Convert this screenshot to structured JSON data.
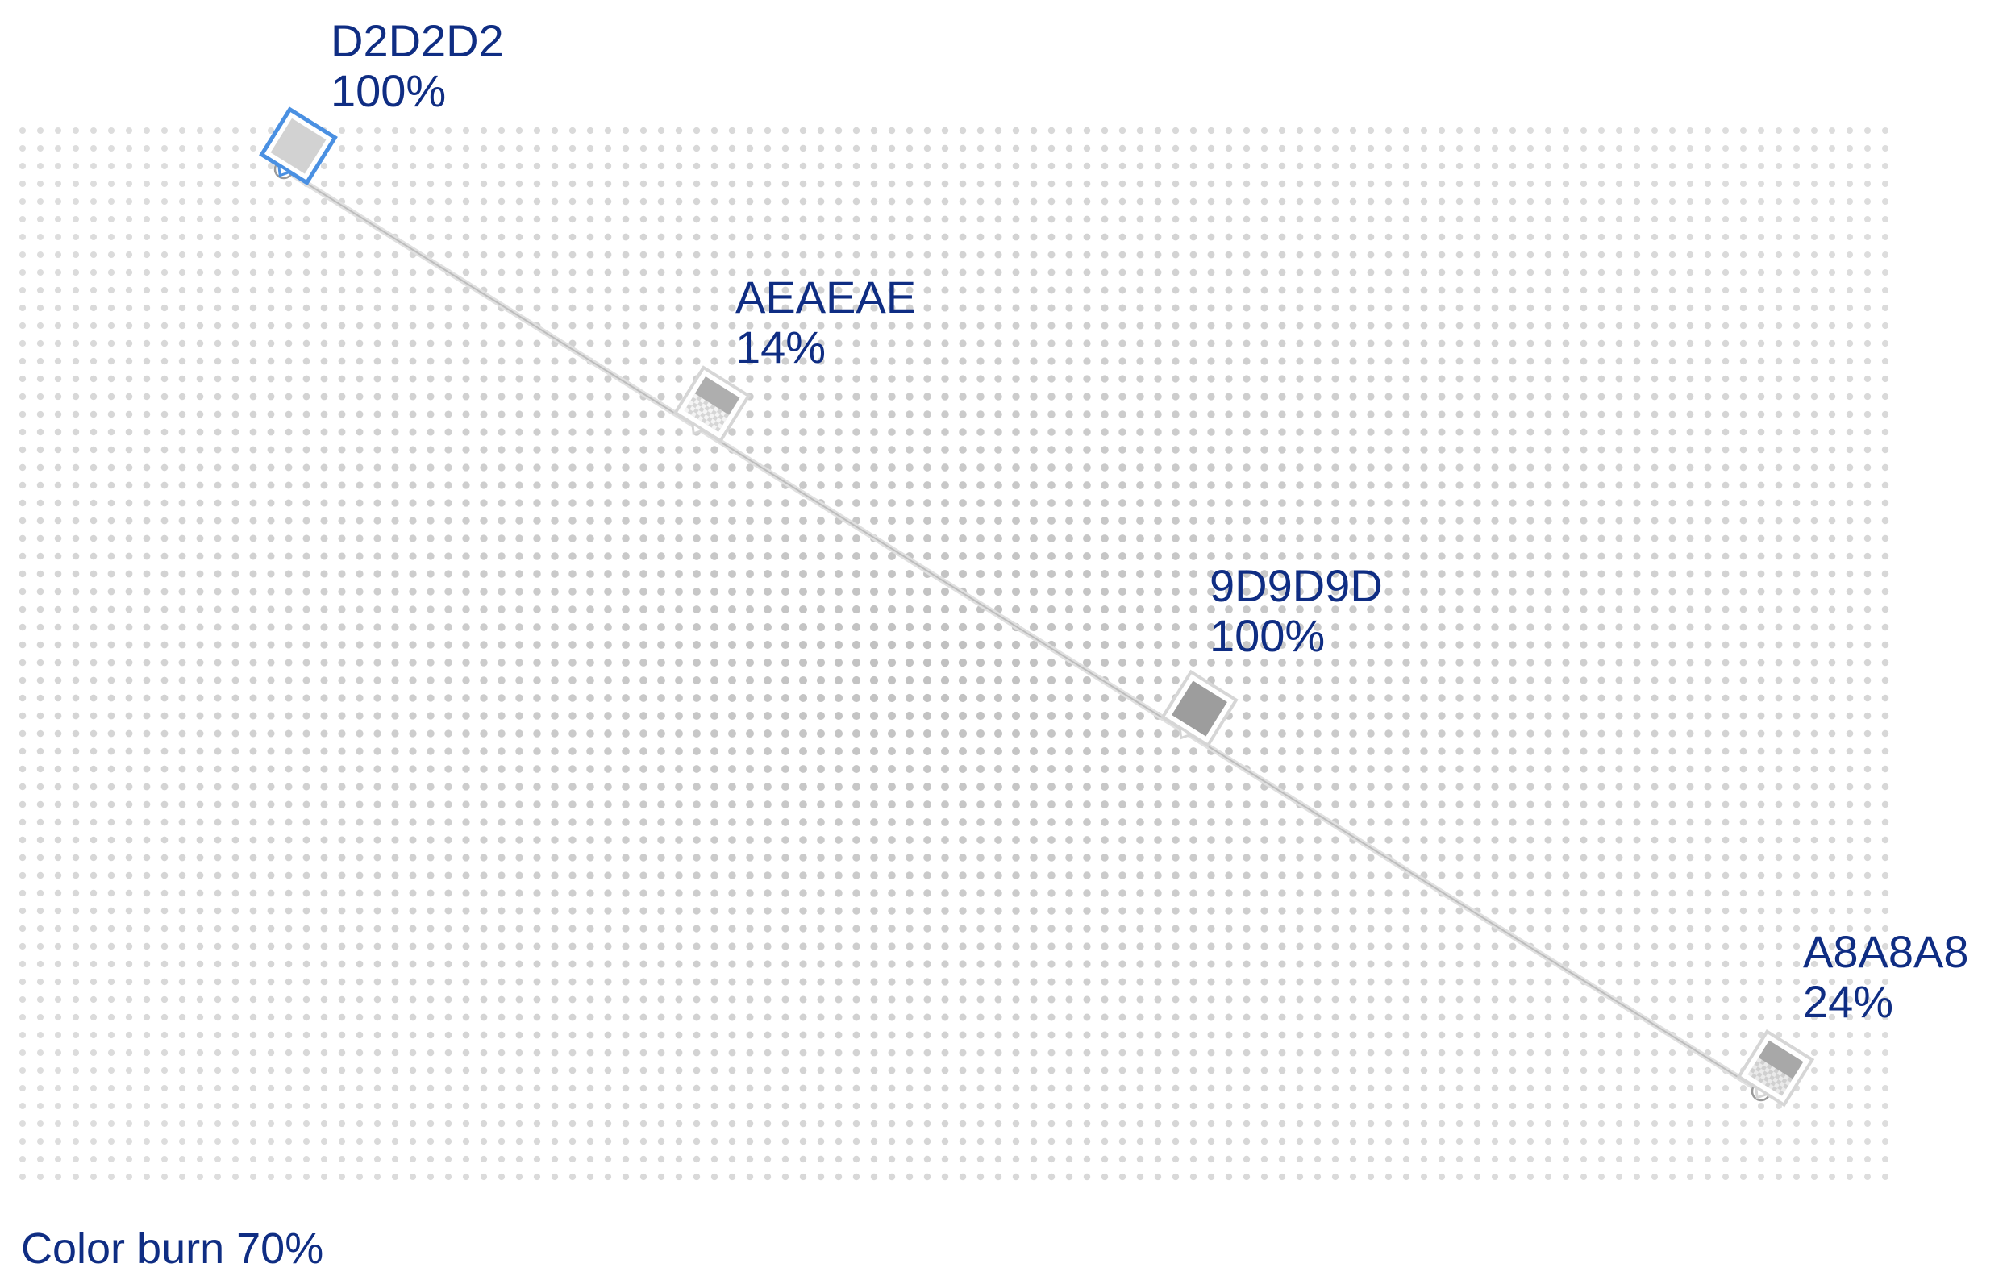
{
  "gradient": {
    "stops": [
      {
        "color": "D2D2D2",
        "opacity": "100%",
        "fill": "#d2d2d2",
        "alpha": 1.0,
        "selected": true,
        "position": 0.0
      },
      {
        "color": "AEAEAE",
        "opacity": "14%",
        "fill": "#aeaeae",
        "alpha": 0.14,
        "selected": false,
        "position": 0.28
      },
      {
        "color": "9D9D9D",
        "opacity": "100%",
        "fill": "#9d9d9d",
        "alpha": 1.0,
        "selected": false,
        "position": 0.61
      },
      {
        "color": "A8A8A8",
        "opacity": "24%",
        "fill": "#a8a8a8",
        "alpha": 0.24,
        "selected": false,
        "position": 1.0
      }
    ]
  },
  "blend": {
    "caption": "Color burn 70%"
  },
  "colors": {
    "label_text": "#0f2d83",
    "selection_outline": "#4a90e2",
    "handle_outline": "#d6d6d6",
    "dot": "#9a9a9a"
  }
}
